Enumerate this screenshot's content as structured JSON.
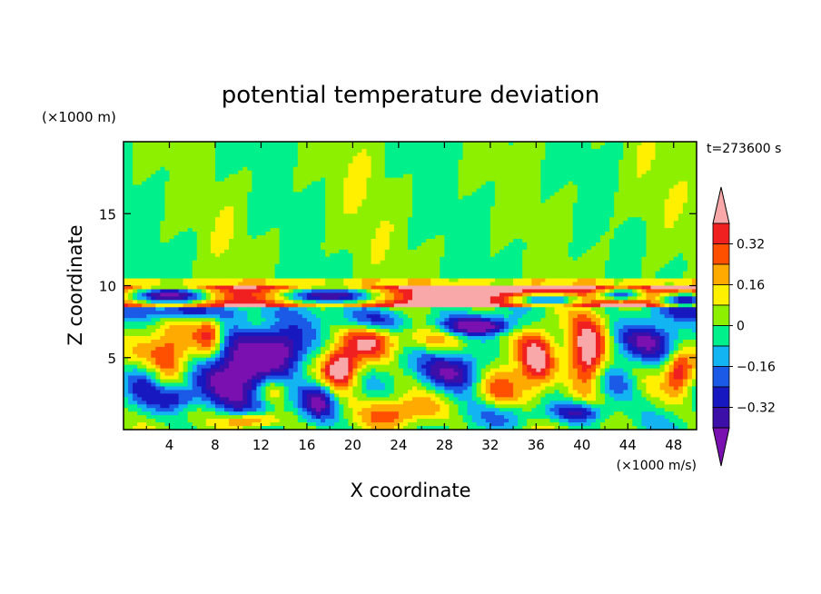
{
  "chart_data": {
    "type": "heatmap",
    "title": "potential temperature deviation",
    "xlabel": "X coordinate",
    "ylabel": "Z coordinate",
    "x_unit": "(×1000 m/s)",
    "y_unit": "(×1000 m)",
    "time_label": "t=273600 s",
    "xlim": [
      0,
      50
    ],
    "ylim": [
      0,
      20
    ],
    "x_ticks": [
      "4",
      "8",
      "12",
      "16",
      "20",
      "24",
      "28",
      "32",
      "36",
      "40",
      "44",
      "48"
    ],
    "y_ticks": [
      "5",
      "10",
      "15"
    ],
    "colorbar": {
      "tick_labels": [
        "0.32",
        "0.16",
        "0",
        "−0.16",
        "−0.32"
      ],
      "levels": [
        -0.4,
        -0.32,
        -0.24,
        -0.16,
        -0.08,
        0,
        0.08,
        0.16,
        0.24,
        0.32,
        0.4
      ],
      "colors": [
        "#7a10b0",
        "#3c10a8",
        "#1818c0",
        "#1a5ae6",
        "#12b4f2",
        "#00f08c",
        "#8cf000",
        "#fff000",
        "#ffaa00",
        "#ff5000",
        "#f02020",
        "#f8a8a8"
      ],
      "extend": "both"
    },
    "field_description": "Stable upper layer near zero above z=10; strong eddies below with values spanning the full range."
  }
}
